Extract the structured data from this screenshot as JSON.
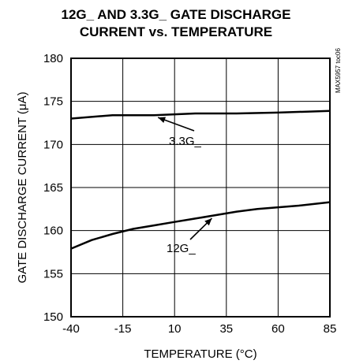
{
  "chart_data": {
    "type": "line",
    "title_lines": [
      "12G_ AND 3.3G_ GATE DISCHARGE",
      "CURRENT vs. TEMPERATURE"
    ],
    "xlabel": "TEMPERATURE (°C)",
    "ylabel": "GATE DISCHARGE CURRENT (μA)",
    "xlim": [
      -40,
      85
    ],
    "ylim": [
      150,
      180
    ],
    "x_ticks": [
      "-40",
      "-15",
      "10",
      "35",
      "60",
      "85"
    ],
    "y_ticks": [
      "150",
      "155",
      "160",
      "165",
      "170",
      "175",
      "180"
    ],
    "grid": true,
    "watermark": "MAX5957 toc06",
    "series": [
      {
        "name": "3.3G_",
        "x": [
          -40,
          -20,
          0,
          20,
          40,
          60,
          85
        ],
        "y": [
          173.0,
          173.4,
          173.4,
          173.6,
          173.6,
          173.7,
          173.9
        ]
      },
      {
        "name": "12G_",
        "x": [
          -40,
          -30,
          -20,
          -10,
          0,
          10,
          20,
          30,
          40,
          50,
          60,
          70,
          85
        ],
        "y": [
          157.9,
          158.9,
          159.6,
          160.2,
          160.6,
          161.0,
          161.4,
          161.8,
          162.2,
          162.5,
          162.7,
          162.9,
          163.3
        ]
      }
    ],
    "annotations": [
      {
        "text": "3.3G_",
        "series": "3.3G_",
        "x": 2,
        "y": 173.4
      },
      {
        "text": "12G_",
        "series": "12G_",
        "x": 28,
        "y": 161.7
      }
    ]
  }
}
